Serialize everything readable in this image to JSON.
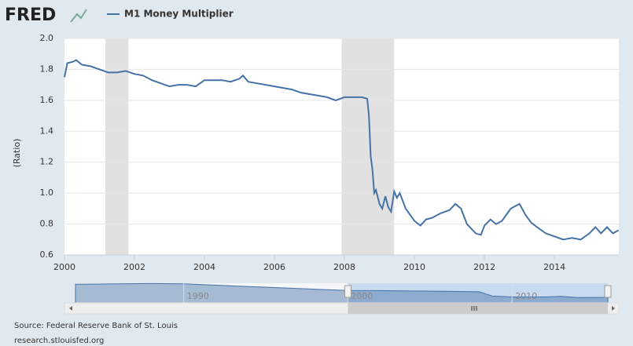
{
  "logo": "FRED",
  "chart_data": {
    "type": "line",
    "y_label": "(Ratio)",
    "source": "Source: Federal Reserve Bank of St. Louis",
    "url": "research.stlouisfed.org",
    "xlim": [
      2000,
      2015.84
    ],
    "ylim": [
      0.6,
      2.0
    ],
    "xticks": [
      2000,
      2002,
      2004,
      2006,
      2008,
      2010,
      2012,
      2014
    ],
    "yticks": [
      {
        "value": 0.6,
        "label": "0.6"
      },
      0.8,
      {
        "value": 1.0,
        "label": "1.0"
      },
      1.2,
      1.4,
      1.6,
      1.8,
      {
        "value": 2.0,
        "label": "2.0"
      }
    ],
    "grid": true,
    "shaded_periods": [
      [
        2001.17,
        2001.83
      ],
      [
        2007.92,
        2009.42
      ]
    ],
    "shade_color": "#e1e1e1",
    "x": [
      2000.0,
      2000.08,
      2000.25,
      2000.33,
      2000.5,
      2000.75,
      2001.0,
      2001.25,
      2001.5,
      2001.75,
      2002.0,
      2002.25,
      2002.5,
      2002.75,
      2003.0,
      2003.25,
      2003.5,
      2003.75,
      2004.0,
      2004.25,
      2004.5,
      2004.75,
      2005.0,
      2005.1,
      2005.25,
      2005.5,
      2005.75,
      2006.0,
      2006.25,
      2006.5,
      2006.75,
      2007.0,
      2007.25,
      2007.5,
      2007.75,
      2008.0,
      2008.25,
      2008.5,
      2008.65,
      2008.7,
      2008.75,
      2008.8,
      2008.85,
      2008.9,
      2009.0,
      2009.08,
      2009.17,
      2009.25,
      2009.33,
      2009.42,
      2009.5,
      2009.58,
      2009.75,
      2010.0,
      2010.17,
      2010.33,
      2010.5,
      2010.75,
      2011.0,
      2011.17,
      2011.33,
      2011.5,
      2011.75,
      2011.9,
      2012.0,
      2012.17,
      2012.33,
      2012.5,
      2012.75,
      2013.0,
      2013.17,
      2013.33,
      2013.5,
      2013.75,
      2014.0,
      2014.25,
      2014.5,
      2014.75,
      2015.0,
      2015.17,
      2015.33,
      2015.5,
      2015.67,
      2015.83
    ],
    "series": [
      {
        "name": "M1 Money Multiplier",
        "color": "#4572a7",
        "values": [
          1.75,
          1.84,
          1.85,
          1.86,
          1.83,
          1.82,
          1.8,
          1.78,
          1.78,
          1.79,
          1.77,
          1.76,
          1.73,
          1.71,
          1.69,
          1.7,
          1.7,
          1.69,
          1.73,
          1.73,
          1.73,
          1.72,
          1.74,
          1.76,
          1.72,
          1.71,
          1.7,
          1.69,
          1.68,
          1.67,
          1.65,
          1.64,
          1.63,
          1.62,
          1.6,
          1.62,
          1.62,
          1.62,
          1.61,
          1.5,
          1.24,
          1.15,
          1.0,
          1.02,
          0.93,
          0.9,
          0.98,
          0.91,
          0.88,
          1.01,
          0.97,
          1.0,
          0.9,
          0.82,
          0.79,
          0.83,
          0.84,
          0.87,
          0.89,
          0.93,
          0.9,
          0.8,
          0.74,
          0.73,
          0.79,
          0.83,
          0.8,
          0.82,
          0.9,
          0.93,
          0.86,
          0.81,
          0.78,
          0.74,
          0.72,
          0.7,
          0.71,
          0.7,
          0.74,
          0.78,
          0.74,
          0.78,
          0.74,
          0.76
        ]
      }
    ],
    "navigator": {
      "xlim": [
        1983.4,
        2015.84
      ],
      "ylim": [
        -1.5,
        2.9
      ],
      "xticks": [
        1990,
        2000,
        2010
      ],
      "selection": [
        2000,
        2015.84
      ],
      "x": [
        1983.4,
        1986,
        1988,
        1990,
        1992,
        1994,
        1996,
        1998,
        2000,
        2002,
        2004,
        2006,
        2008,
        2008.8,
        2010,
        2012,
        2013,
        2014,
        2015.84
      ],
      "values": [
        2.75,
        2.8,
        2.85,
        2.8,
        2.6,
        2.4,
        2.2,
        2.0,
        1.8,
        1.78,
        1.72,
        1.68,
        1.6,
        0.95,
        0.82,
        0.82,
        0.9,
        0.72,
        0.75
      ]
    }
  }
}
